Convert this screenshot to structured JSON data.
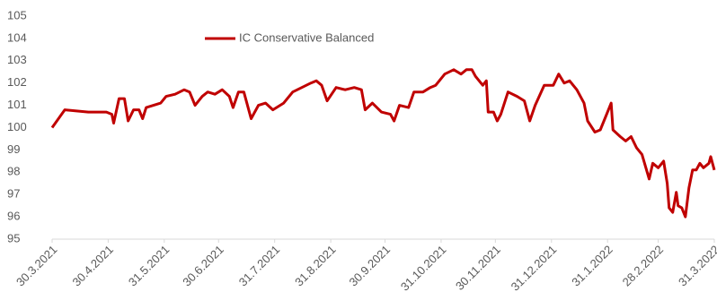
{
  "chart_data": {
    "type": "line",
    "x": [
      "30.3.2021",
      "6.4.2021",
      "19.4.2021",
      "29.4.2021",
      "2.5.2021",
      "3.5.2021",
      "6.5.2021",
      "9.5.2021",
      "11.5.2021",
      "14.5.2021",
      "17.5.2021",
      "19.5.2021",
      "21.5.2021",
      "25.5.2021",
      "29.5.2021",
      "1.6.2021",
      "6.6.2021",
      "11.6.2021",
      "14.6.2021",
      "17.6.2021",
      "21.6.2021",
      "24.6.2021",
      "28.6.2021",
      "2.7.2021",
      "6.7.2021",
      "8.7.2021",
      "11.7.2021",
      "14.7.2021",
      "18.7.2021",
      "22.7.2021",
      "26.7.2021",
      "30.7.2021",
      "5.8.2021",
      "10.8.2021",
      "15.8.2021",
      "20.8.2021",
      "23.8.2021",
      "26.8.2021",
      "29.8.2021",
      "3.9.2021",
      "8.9.2021",
      "13.9.2021",
      "17.9.2021",
      "19.9.2021",
      "23.9.2021",
      "28.9.2021",
      "3.10.2021",
      "5.10.2021",
      "8.10.2021",
      "13.10.2021",
      "16.10.2021",
      "21.10.2021",
      "25.10.2021",
      "28.10.2021",
      "2.11.2021",
      "7.11.2021",
      "11.11.2021",
      "14.11.2021",
      "17.11.2021",
      "19.11.2021",
      "23.11.2021",
      "25.11.2021",
      "26.11.2021",
      "29.11.2021",
      "1.12.2021",
      "3.12.2021",
      "7.12.2021",
      "12.12.2021",
      "16.12.2021",
      "19.12.2021",
      "22.12.2021",
      "27.12.2021",
      "1.1.2022",
      "4.1.2022",
      "7.1.2022",
      "10.1.2022",
      "14.1.2022",
      "18.1.2022",
      "20.1.2022",
      "24.1.2022",
      "27.1.2022",
      "30.1.2022",
      "2.2.2022",
      "3.2.2022",
      "7.2.2022",
      "10.2.2022",
      "13.2.2022",
      "16.2.2022",
      "19.2.2022",
      "23.2.2022",
      "25.2.2022",
      "28.2.2022",
      "3.3.2022",
      "5.3.2022",
      "6.3.2022",
      "8.3.2022",
      "10.3.2022",
      "11.3.2022",
      "13.3.2022",
      "15.3.2022",
      "17.3.2022",
      "19.3.2022",
      "21.3.2022",
      "23.3.2022",
      "25.3.2022",
      "28.3.2022",
      "29.3.2022",
      "31.3.2022"
    ],
    "series": [
      {
        "name": "IC Conservative Balanced",
        "color": "#c00000",
        "values": [
          100.0,
          100.8,
          100.7,
          100.7,
          100.6,
          100.2,
          101.3,
          101.3,
          100.3,
          100.8,
          100.8,
          100.4,
          100.9,
          101.0,
          101.1,
          101.4,
          101.5,
          101.7,
          101.6,
          101.0,
          101.4,
          101.6,
          101.5,
          101.7,
          101.4,
          100.9,
          101.6,
          101.6,
          100.4,
          101.0,
          101.1,
          100.8,
          101.1,
          101.6,
          101.8,
          102.0,
          102.1,
          101.9,
          101.2,
          101.8,
          101.7,
          101.8,
          101.7,
          100.8,
          101.1,
          100.7,
          100.6,
          100.3,
          101.0,
          100.9,
          101.6,
          101.6,
          101.8,
          101.9,
          102.4,
          102.6,
          102.4,
          102.6,
          102.6,
          102.3,
          101.9,
          102.1,
          100.7,
          100.7,
          100.3,
          100.6,
          101.6,
          101.4,
          101.2,
          100.3,
          101.0,
          101.9,
          101.9,
          102.4,
          102.0,
          102.1,
          101.7,
          101.1,
          100.3,
          99.8,
          99.9,
          100.5,
          101.1,
          99.9,
          99.6,
          99.4,
          99.6,
          99.1,
          98.8,
          97.7,
          98.4,
          98.2,
          98.5,
          97.5,
          96.4,
          96.2,
          97.1,
          96.5,
          96.4,
          96.0,
          97.3,
          98.1,
          98.1,
          98.4,
          98.2,
          98.4,
          98.7,
          98.1
        ]
      }
    ],
    "xlim": [
      "30.3.2021",
      "31.3.2022"
    ],
    "xticks": [
      "30.3.2021",
      "30.4.2021",
      "31.5.2021",
      "30.6.2021",
      "31.7.2021",
      "31.8.2021",
      "30.9.2021",
      "31.10.2021",
      "30.11.2021",
      "31.12.2021",
      "31.1.2022",
      "28.2.2022",
      "31.3.2022"
    ],
    "ylim": [
      95,
      105
    ],
    "yticks": [
      95,
      96,
      97,
      98,
      99,
      100,
      101,
      102,
      103,
      104,
      105
    ],
    "grid": false,
    "legend": "top"
  }
}
